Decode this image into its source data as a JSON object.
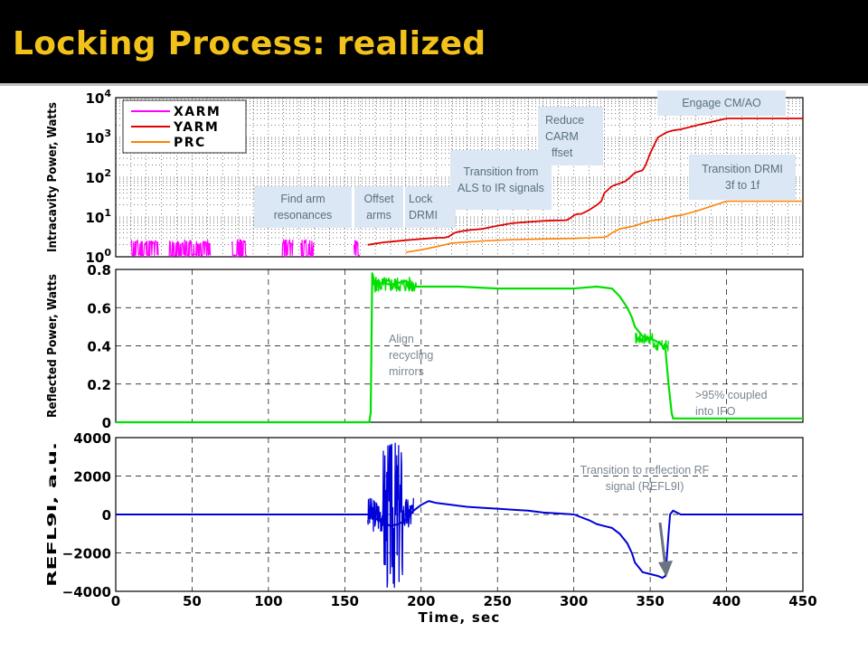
{
  "slide": {
    "title": "Locking Process: realized"
  },
  "colors": {
    "xarm": "#ff00ff",
    "yarm": "#e00000",
    "prc": "#ff8000",
    "reflected": "#00e000",
    "refl9i": "#0000d8",
    "title": "#f2c21b"
  },
  "callouts": {
    "engage": "Engage CM/AO",
    "reduce_carm": "Reduce CARM offset",
    "transition_drmi": "Transition DRMI 3f to 1f",
    "transition_als": "Transition from ALS to IR signals",
    "find_arm": "Find arm resonances",
    "offset_arms": "Offset arms",
    "lock_drmi": "Lock DRMI",
    "align": "Align recycling mirrors",
    "coupled": ">95% coupled into IFO",
    "transition_refl": "Transition to reflection RF signal (REFL9I)"
  },
  "chart_data": [
    {
      "type": "line",
      "ylabel": "Intracavity Power, Watts",
      "yscale": "log",
      "ylim": [
        1,
        10000
      ],
      "xlim": [
        0,
        450
      ],
      "yticks": [
        "10^0",
        "10^1",
        "10^2",
        "10^3",
        "10^4"
      ],
      "grid": true,
      "legend": {
        "position": "top-left",
        "entries": [
          "XARM",
          "YARM",
          "PRC"
        ]
      },
      "series": [
        {
          "name": "XARM",
          "segments": [
            [
              10,
              28
            ],
            [
              35,
              62
            ],
            [
              76,
              86
            ],
            [
              109,
              116
            ],
            [
              121,
              125
            ],
            [
              126,
              130
            ],
            [
              156,
              160
            ]
          ],
          "level": 1.8
        },
        {
          "name": "YARM",
          "x": [
            165,
            175,
            180,
            190,
            195,
            200,
            205,
            210,
            215,
            218,
            220,
            222,
            225,
            228,
            230,
            232,
            240,
            245,
            250,
            260,
            270,
            280,
            288,
            295,
            297,
            300,
            302,
            305,
            310,
            315,
            318,
            320,
            325,
            330,
            334,
            338,
            340,
            345,
            347,
            350,
            355,
            360,
            362,
            365,
            370,
            380,
            400,
            420,
            440,
            450
          ],
          "y": [
            2,
            2.3,
            2.4,
            2.6,
            2.7,
            2.8,
            2.9,
            3,
            3,
            3.2,
            3.6,
            4,
            4.3,
            4.5,
            4.6,
            4.7,
            5,
            5.5,
            6,
            7,
            7.5,
            8,
            8.2,
            8.3,
            9,
            11,
            11.8,
            12,
            15,
            20,
            25,
            40,
            60,
            70,
            80,
            110,
            130,
            150,
            200,
            400,
            1000,
            1300,
            1400,
            1500,
            1600,
            2000,
            3000,
            3000,
            3000,
            3000
          ]
        },
        {
          "name": "PRC",
          "x": [
            190,
            200,
            210,
            220,
            240,
            260,
            280,
            300,
            310,
            320,
            322,
            325,
            330,
            340,
            345,
            350,
            355,
            360,
            363,
            365,
            370,
            380,
            400,
            420,
            440,
            450
          ],
          "y": [
            1.3,
            1.5,
            1.8,
            2.2,
            2.5,
            2.7,
            2.8,
            2.9,
            3,
            3.1,
            3.3,
            4,
            5,
            6,
            7,
            8,
            8.5,
            9,
            10,
            10.5,
            11,
            14,
            25,
            25,
            25,
            25
          ]
        }
      ]
    },
    {
      "type": "line",
      "ylabel": "Reflected Power, Watts",
      "ylim": [
        0,
        0.8
      ],
      "xlim": [
        0,
        450
      ],
      "yticks": [
        "0",
        "0.2",
        "0.4",
        "0.6",
        "0.8"
      ],
      "grid": true,
      "series": [
        {
          "name": "Reflected",
          "x": [
            0,
            166,
            167,
            168,
            170,
            175,
            180,
            185,
            190,
            194,
            196,
            198,
            200,
            210,
            225,
            250,
            275,
            300,
            315,
            325,
            330,
            335,
            338,
            340,
            345,
            350,
            355,
            358,
            360,
            362,
            364,
            365,
            370,
            400,
            450
          ],
          "y": [
            0,
            0,
            0.05,
            0.78,
            0.72,
            0.73,
            0.72,
            0.73,
            0.74,
            0.72,
            0.71,
            0.71,
            0.71,
            0.71,
            0.71,
            0.7,
            0.7,
            0.7,
            0.71,
            0.7,
            0.66,
            0.6,
            0.55,
            0.5,
            0.45,
            0.44,
            0.42,
            0.4,
            0.38,
            0.2,
            0.05,
            0.02,
            0.02,
            0.02,
            0.02
          ]
        }
      ]
    },
    {
      "type": "line",
      "ylabel": "REFL9I, a.u.",
      "xlabel": "Time, sec",
      "ylim": [
        -4000,
        4000
      ],
      "xlim": [
        0,
        450
      ],
      "yticks": [
        "-4000",
        "-2000",
        "0",
        "2000",
        "4000"
      ],
      "xticks": [
        "0",
        "50",
        "100",
        "150",
        "200",
        "250",
        "300",
        "350",
        "400",
        "450"
      ],
      "grid": true,
      "series": [
        {
          "name": "REFL9I",
          "x": [
            0,
            165,
            170,
            175,
            180,
            185,
            190,
            195,
            200,
            205,
            210,
            220,
            230,
            240,
            250,
            260,
            270,
            280,
            290,
            300,
            310,
            315,
            320,
            325,
            330,
            335,
            338,
            340,
            345,
            350,
            355,
            358,
            360,
            362,
            363,
            365,
            370,
            400,
            450
          ],
          "y": [
            0,
            0,
            -200,
            -400,
            -600,
            -500,
            -300,
            200,
            500,
            700,
            600,
            500,
            400,
            350,
            300,
            250,
            200,
            100,
            50,
            0,
            -300,
            -500,
            -600,
            -700,
            -1000,
            -1500,
            -2000,
            -2500,
            -3000,
            -3100,
            -3200,
            -3300,
            -3200,
            -1000,
            0,
            200,
            0,
            0,
            0
          ]
        }
      ]
    }
  ]
}
